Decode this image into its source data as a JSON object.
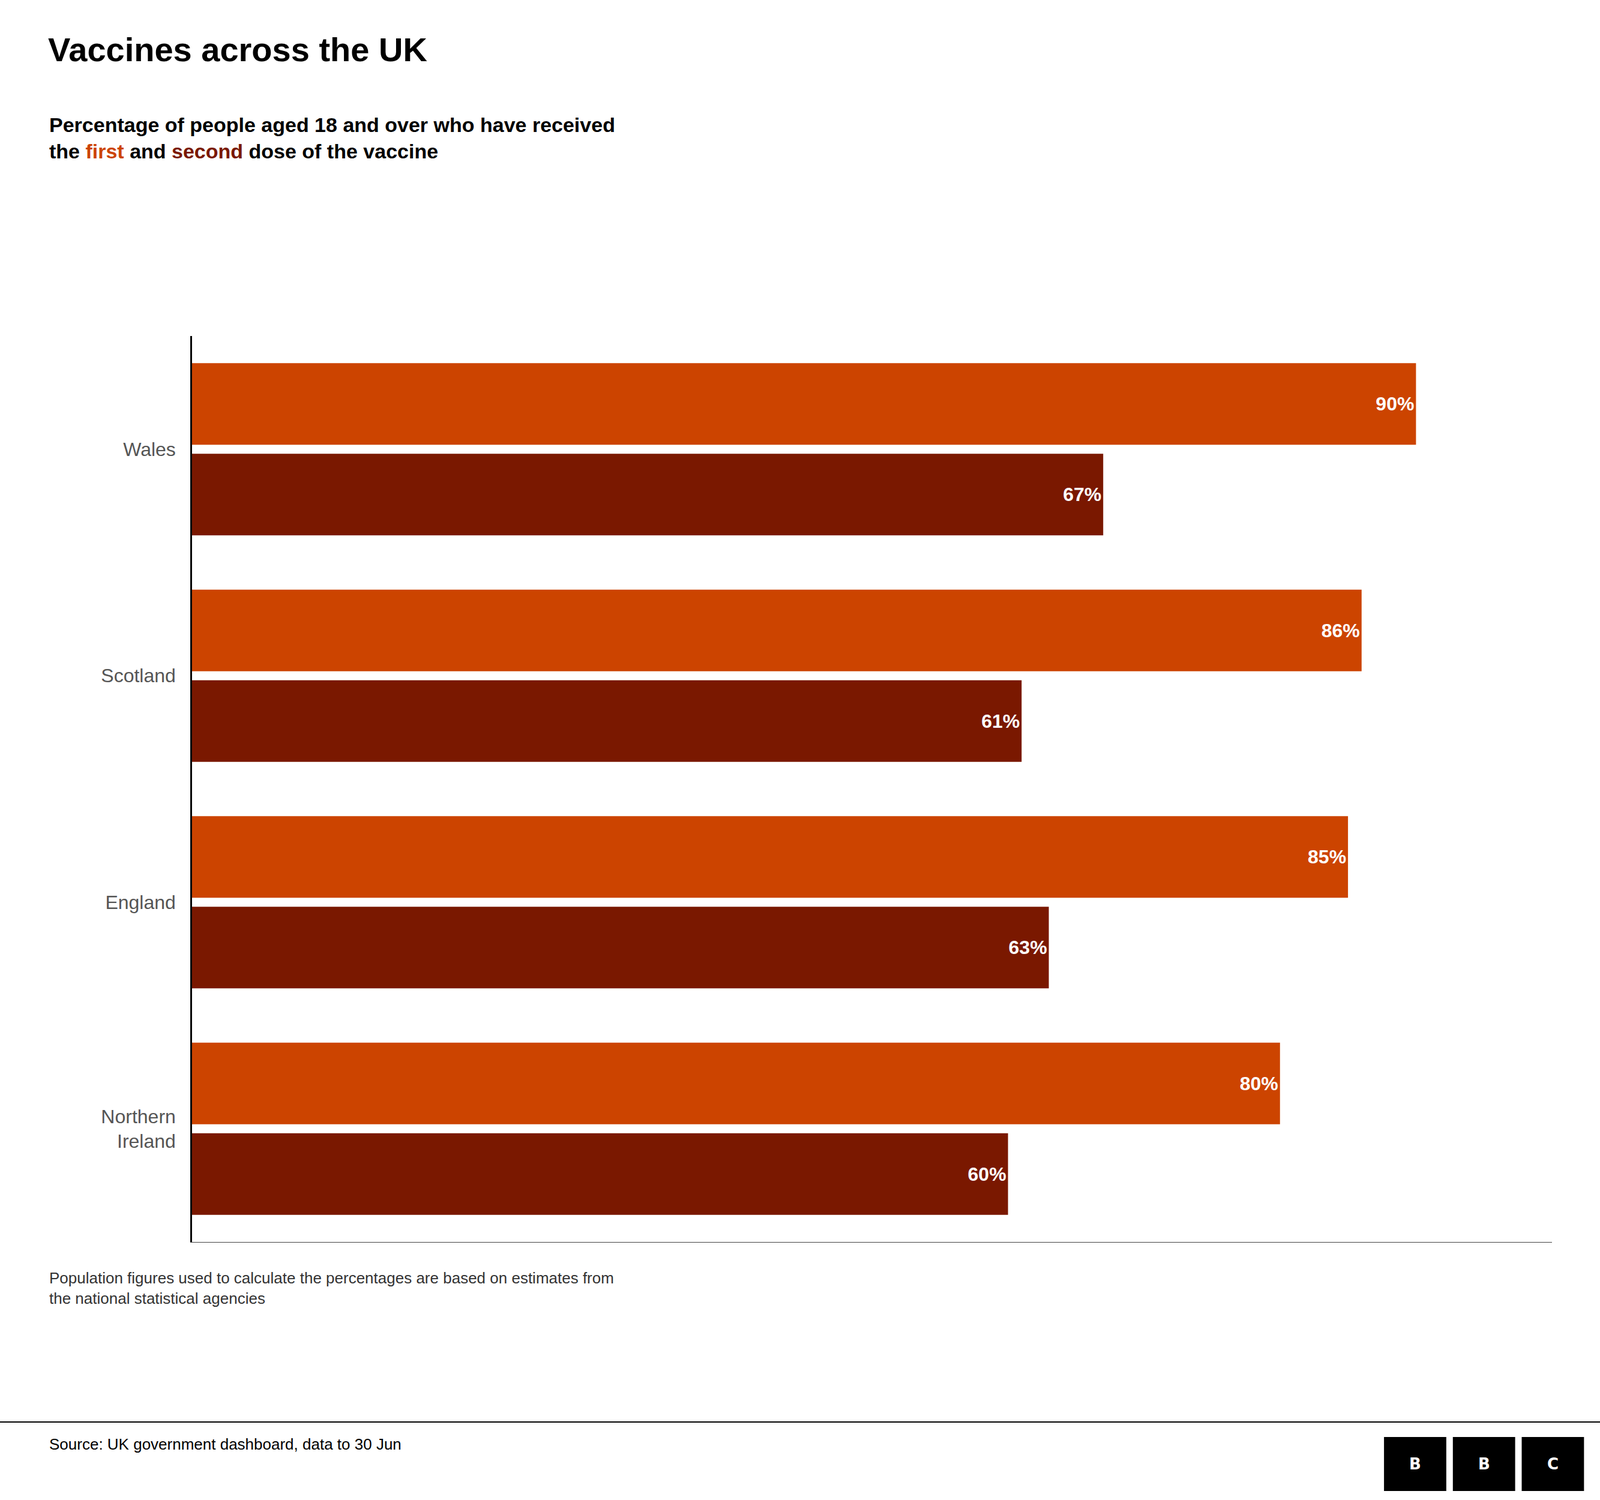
{
  "chart_data": {
    "type": "bar",
    "orientation": "horizontal",
    "title": "Vaccines across the UK",
    "subtitle": "Percentage of people aged 18 and over who have received\nthe first and second dose of the vaccine",
    "categories": [
      "Wales",
      "Scotland",
      "England",
      "Northern\nIreland"
    ],
    "series": [
      {
        "name": "first",
        "color": "#cc4400",
        "values": [
          90,
          86,
          85,
          80
        ],
        "value_labels": [
          "90%",
          "86%",
          "85%",
          "80%"
        ]
      },
      {
        "name": "second",
        "color": "#7a1800",
        "values": [
          67,
          61,
          63,
          60
        ],
        "value_labels": [
          "67%",
          "61%",
          "63%",
          "60%"
        ]
      }
    ],
    "xlim": [
      0,
      100
    ],
    "xticks": [],
    "tick_labels": "y",
    "data_labels": true,
    "grid": false,
    "annotations": [
      "Population figures used to calculate the percentages are based on estimates from\nthe national statistical agencies",
      "Source: UK government dashboard, data to 30 Jun",
      "BBC"
    ]
  }
}
